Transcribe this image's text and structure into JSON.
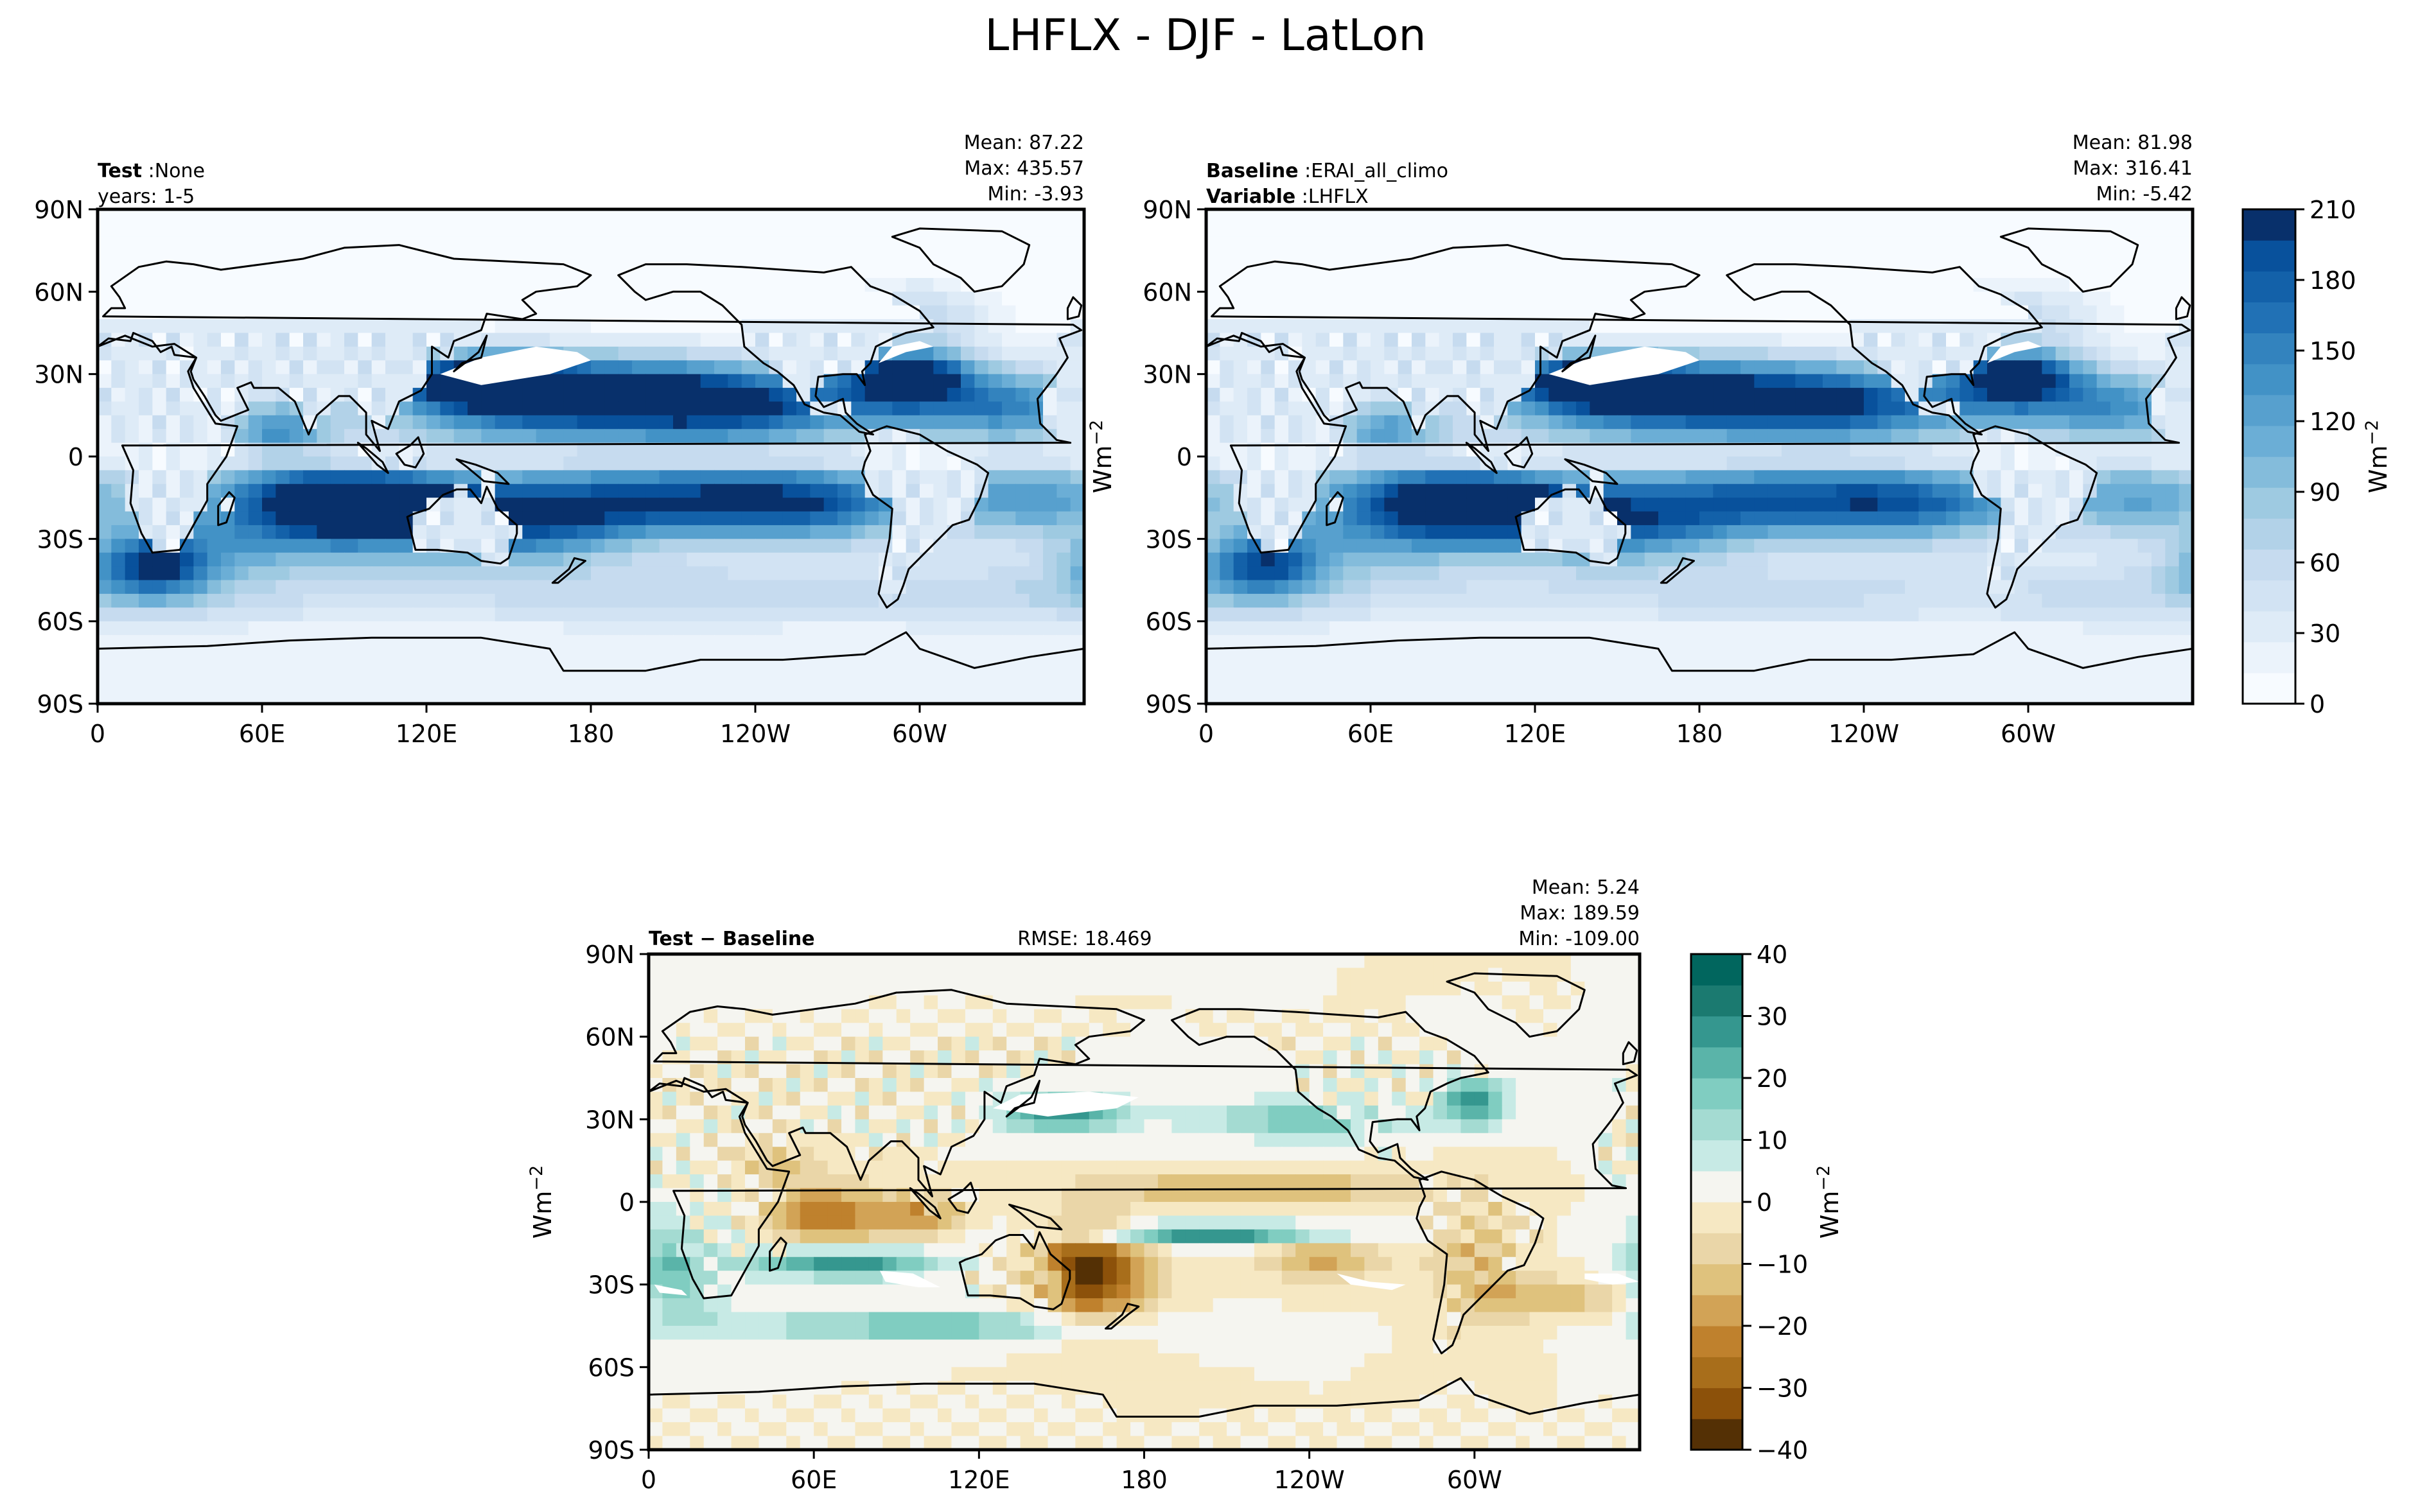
{
  "figure": {
    "title": "LHFLX - DJF - LatLon"
  },
  "chart_data": [
    {
      "type": "heatmap",
      "panel": "test",
      "header_left": [
        {
          "bold": "Test",
          "sep": ":",
          "text": "None"
        },
        {
          "bold": "",
          "sep": "",
          "text": "years: 1-5"
        }
      ],
      "stats": [
        "Mean: 87.22",
        "Max: 435.57",
        "Min: -3.93"
      ],
      "x_ticks": [
        "0",
        "60E",
        "120E",
        "180",
        "120W",
        "60W"
      ],
      "x_tick_values": [
        0,
        60,
        120,
        180,
        240,
        300
      ],
      "xlim": [
        0,
        360
      ],
      "y_ticks": [
        "90N",
        "60N",
        "30N",
        "0",
        "30S",
        "60S",
        "90S"
      ],
      "y_tick_values": [
        90,
        60,
        30,
        0,
        -30,
        -60,
        -90
      ],
      "ylim": [
        -90,
        90
      ],
      "ylabel": "Wm",
      "ylabel_sup": "−2"
    },
    {
      "type": "heatmap",
      "panel": "baseline",
      "header_left": [
        {
          "bold": "Baseline",
          "sep": ":",
          "text": "ERAI_all_climo"
        },
        {
          "bold": "Variable",
          "sep": ":",
          "text": "LHFLX"
        }
      ],
      "stats": [
        "Mean: 81.98",
        "Max: 316.41",
        "Min: -5.42"
      ],
      "x_ticks": [
        "0",
        "60E",
        "120E",
        "180",
        "120W",
        "60W"
      ],
      "x_tick_values": [
        0,
        60,
        120,
        180,
        240,
        300
      ],
      "xlim": [
        0,
        360
      ],
      "y_ticks": [
        "90N",
        "60N",
        "30N",
        "0",
        "30S",
        "60S",
        "90S"
      ],
      "y_tick_values": [
        90,
        60,
        30,
        0,
        -30,
        -60,
        -90
      ],
      "ylim": [
        -90,
        90
      ],
      "colorbar": {
        "ticks": [
          "0",
          "30",
          "60",
          "90",
          "120",
          "150",
          "180",
          "210"
        ],
        "tick_values": [
          0,
          30,
          60,
          90,
          120,
          150,
          180,
          210
        ],
        "range": [
          0,
          210
        ],
        "label": "Wm",
        "label_sup": "−2",
        "colors": [
          "#f7fbff",
          "#ebf3fb",
          "#deebf7",
          "#d2e3f3",
          "#c6dbef",
          "#b2d2e8",
          "#9ecae1",
          "#84bcdb",
          "#6baed6",
          "#57a0ce",
          "#4292c6",
          "#3383be",
          "#2171b5",
          "#1361a9",
          "#08519c",
          "#08306b"
        ]
      }
    },
    {
      "type": "heatmap",
      "panel": "difference",
      "header_left": [
        {
          "bold": "Test − Baseline",
          "sep": "",
          "text": ""
        }
      ],
      "header_center": "RMSE: 18.469",
      "stats": [
        "Mean:  5.24",
        "Max: 189.59",
        "Min: -109.00"
      ],
      "x_ticks": [
        "0",
        "60E",
        "120E",
        "180",
        "120W",
        "60W"
      ],
      "x_tick_values": [
        0,
        60,
        120,
        180,
        240,
        300
      ],
      "xlim": [
        0,
        360
      ],
      "y_ticks": [
        "90N",
        "60N",
        "30N",
        "0",
        "30S",
        "60S",
        "90S"
      ],
      "y_tick_values": [
        90,
        60,
        30,
        0,
        -30,
        -60,
        -90
      ],
      "ylim": [
        -90,
        90
      ],
      "ylabel": "Wm",
      "ylabel_sup": "−2",
      "colorbar": {
        "ticks": [
          "−40",
          "−30",
          "−20",
          "−10",
          "0",
          "10",
          "20",
          "30",
          "40"
        ],
        "tick_values": [
          -40,
          -30,
          -20,
          -10,
          0,
          10,
          20,
          30,
          40
        ],
        "range": [
          -40,
          40
        ],
        "label": "Wm",
        "label_sup": "−2",
        "colors": [
          "#543005",
          "#8c510a",
          "#a86e1b",
          "#bf812d",
          "#d2a356",
          "#dfc27d",
          "#ead6a8",
          "#f6e8c3",
          "#f5f5f0",
          "#c7eae5",
          "#a4dbd2",
          "#80cdc1",
          "#5ab4a9",
          "#35978f",
          "#1b7a70",
          "#01665e"
        ]
      }
    }
  ]
}
